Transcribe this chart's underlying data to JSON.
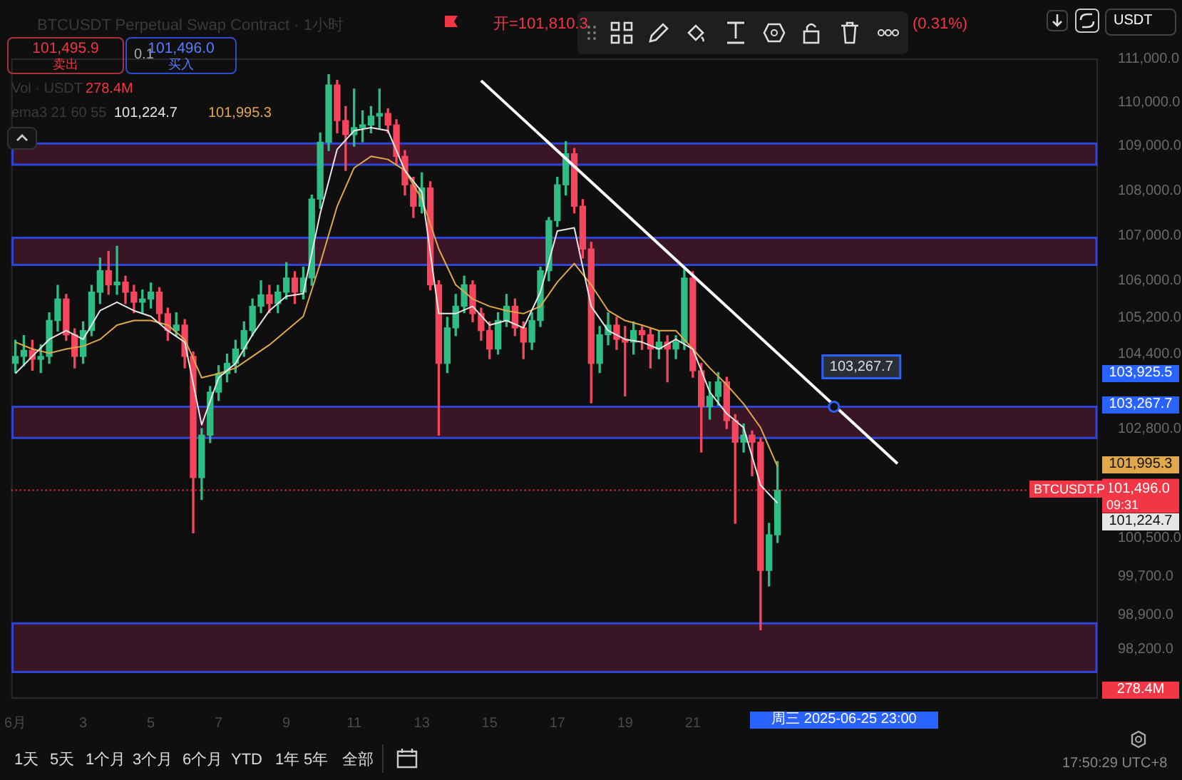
{
  "chart_data": {
    "type": "candlestick",
    "title": "BTCUSDT Perpetual Swap Contract · 1小时",
    "x": [
      "2025-06-01T00:00",
      "2025-06-01T06:00",
      "2025-06-01T12:00",
      "2025-06-01T18:00",
      "2025-06-02T00:00",
      "2025-06-02T06:00",
      "2025-06-02T12:00",
      "2025-06-02T18:00",
      "2025-06-03T00:00",
      "2025-06-03T06:00",
      "2025-06-03T12:00",
      "2025-06-03T18:00",
      "2025-06-04T00:00",
      "2025-06-04T06:00",
      "2025-06-04T12:00",
      "2025-06-04T18:00",
      "2025-06-05T00:00",
      "2025-06-05T06:00",
      "2025-06-05T12:00",
      "2025-06-05T18:00",
      "2025-06-06T00:00",
      "2025-06-06T06:00",
      "2025-06-06T12:00",
      "2025-06-06T18:00",
      "2025-06-07T00:00",
      "2025-06-07T06:00",
      "2025-06-07T12:00",
      "2025-06-07T18:00",
      "2025-06-08T00:00",
      "2025-06-08T06:00",
      "2025-06-08T12:00",
      "2025-06-08T18:00",
      "2025-06-09T00:00",
      "2025-06-09T06:00",
      "2025-06-09T12:00",
      "2025-06-09T18:00",
      "2025-06-10T00:00",
      "2025-06-10T06:00",
      "2025-06-10T12:00",
      "2025-06-10T18:00",
      "2025-06-11T00:00",
      "2025-06-11T06:00",
      "2025-06-11T12:00",
      "2025-06-11T18:00",
      "2025-06-12T00:00",
      "2025-06-12T06:00",
      "2025-06-12T12:00",
      "2025-06-12T18:00",
      "2025-06-13T00:00",
      "2025-06-13T06:00",
      "2025-06-13T12:00",
      "2025-06-13T18:00",
      "2025-06-14T00:00",
      "2025-06-14T06:00",
      "2025-06-14T12:00",
      "2025-06-14T18:00",
      "2025-06-15T00:00",
      "2025-06-15T06:00",
      "2025-06-15T12:00",
      "2025-06-15T18:00",
      "2025-06-16T00:00",
      "2025-06-16T06:00",
      "2025-06-16T12:00",
      "2025-06-16T18:00",
      "2025-06-17T00:00",
      "2025-06-17T06:00",
      "2025-06-17T12:00",
      "2025-06-17T18:00",
      "2025-06-18T00:00",
      "2025-06-18T06:00",
      "2025-06-18T12:00",
      "2025-06-18T18:00",
      "2025-06-19T00:00",
      "2025-06-19T06:00",
      "2025-06-19T12:00",
      "2025-06-19T18:00",
      "2025-06-20T00:00",
      "2025-06-20T06:00",
      "2025-06-20T12:00",
      "2025-06-20T18:00",
      "2025-06-21T00:00",
      "2025-06-21T06:00",
      "2025-06-21T12:00",
      "2025-06-21T18:00",
      "2025-06-22T00:00",
      "2025-06-22T06:00",
      "2025-06-22T12:00",
      "2025-06-22T18:00",
      "2025-06-23T00:00",
      "2025-06-23T06:00",
      "2025-06-23T12:00"
    ],
    "ohlc": [
      [
        104200,
        104700,
        104000,
        104350
      ],
      [
        104350,
        104800,
        104150,
        104480
      ],
      [
        104480,
        104700,
        104050,
        104290
      ],
      [
        104290,
        104600,
        104000,
        104350
      ],
      [
        104350,
        105300,
        104200,
        105130
      ],
      [
        105130,
        105900,
        104900,
        105600
      ],
      [
        105600,
        105700,
        104700,
        104820
      ],
      [
        104820,
        104950,
        104100,
        104350
      ],
      [
        104350,
        105100,
        104200,
        104910
      ],
      [
        104910,
        105900,
        104800,
        105750
      ],
      [
        105750,
        106500,
        105500,
        106220
      ],
      [
        106220,
        106650,
        105700,
        105910
      ],
      [
        105910,
        106760,
        105700,
        105970
      ],
      [
        105970,
        106100,
        105500,
        105750
      ],
      [
        105750,
        105900,
        105300,
        105530
      ],
      [
        105530,
        105800,
        105300,
        105600
      ],
      [
        105600,
        105950,
        105400,
        105750
      ],
      [
        105750,
        105850,
        105100,
        105280
      ],
      [
        105280,
        105400,
        104700,
        104910
      ],
      [
        104910,
        105300,
        104800,
        105030
      ],
      [
        105030,
        105150,
        104100,
        104350
      ],
      [
        104350,
        104450,
        100600,
        101760
      ],
      [
        101760,
        102800,
        101300,
        102660
      ],
      [
        102660,
        103700,
        102500,
        103580
      ],
      [
        103580,
        104150,
        103400,
        103980
      ],
      [
        103980,
        104400,
        103800,
        104200
      ],
      [
        104200,
        104700,
        104000,
        104510
      ],
      [
        104510,
        105100,
        104350,
        104910
      ],
      [
        104910,
        105600,
        104800,
        105440
      ],
      [
        105440,
        106000,
        105300,
        105690
      ],
      [
        105690,
        105900,
        105300,
        105500
      ],
      [
        105500,
        105900,
        105300,
        105750
      ],
      [
        105750,
        106400,
        105600,
        106060
      ],
      [
        106060,
        106200,
        105500,
        105750
      ],
      [
        105750,
        106300,
        105600,
        106060
      ],
      [
        106060,
        107900,
        105900,
        107810
      ],
      [
        107810,
        109300,
        107600,
        109090
      ],
      [
        109090,
        110630,
        108900,
        110390
      ],
      [
        110390,
        110500,
        109300,
        109580
      ],
      [
        109580,
        109900,
        108450,
        109260
      ],
      [
        109260,
        110300,
        109000,
        109420
      ],
      [
        109420,
        109800,
        109100,
        109480
      ],
      [
        109480,
        109900,
        109300,
        109680
      ],
      [
        109680,
        110300,
        109400,
        109740
      ],
      [
        109740,
        109850,
        109300,
        109480
      ],
      [
        109480,
        109600,
        108600,
        108770
      ],
      [
        108770,
        108900,
        107900,
        108130
      ],
      [
        108130,
        108300,
        107400,
        107650
      ],
      [
        107650,
        108400,
        107500,
        108060
      ],
      [
        108060,
        108200,
        105800,
        105910
      ],
      [
        105910,
        106000,
        102660,
        104200
      ],
      [
        104200,
        105200,
        104000,
        104970
      ],
      [
        104970,
        105700,
        104800,
        105440
      ],
      [
        105440,
        106100,
        105300,
        105910
      ],
      [
        105910,
        106000,
        105100,
        105280
      ],
      [
        105280,
        105400,
        104700,
        104910
      ],
      [
        104910,
        105100,
        104300,
        104510
      ],
      [
        104510,
        105300,
        104400,
        105130
      ],
      [
        105130,
        105700,
        105000,
        105440
      ],
      [
        105440,
        105600,
        104800,
        104970
      ],
      [
        104970,
        105100,
        104300,
        104660
      ],
      [
        104660,
        105300,
        104500,
        105130
      ],
      [
        105130,
        106300,
        105000,
        106220
      ],
      [
        106220,
        107400,
        106000,
        107330
      ],
      [
        107330,
        108300,
        107200,
        108130
      ],
      [
        108130,
        109100,
        107900,
        108830
      ],
      [
        108830,
        108950,
        107500,
        107650
      ],
      [
        107650,
        107800,
        106500,
        106700
      ],
      [
        106700,
        106850,
        103350,
        104200
      ],
      [
        104200,
        105000,
        104000,
        104820
      ],
      [
        104820,
        105300,
        104600,
        105030
      ],
      [
        105030,
        105200,
        104500,
        104720
      ],
      [
        104720,
        105000,
        103500,
        104660
      ],
      [
        104660,
        105100,
        104400,
        104910
      ],
      [
        104910,
        105000,
        104500,
        104820
      ],
      [
        104820,
        104950,
        104100,
        104510
      ],
      [
        104510,
        104900,
        104300,
        104660
      ],
      [
        104660,
        104800,
        103800,
        104510
      ],
      [
        104510,
        104800,
        104300,
        104660
      ],
      [
        104660,
        106300,
        104500,
        106060
      ],
      [
        106060,
        106200,
        103900,
        104040
      ],
      [
        104040,
        104200,
        102300,
        103270
      ],
      [
        103270,
        103800,
        103000,
        103490
      ],
      [
        103490,
        104000,
        103300,
        103800
      ],
      [
        103800,
        103900,
        102800,
        102970
      ],
      [
        102970,
        103100,
        100800,
        102510
      ],
      [
        102510,
        102900,
        102300,
        102660
      ],
      [
        102660,
        102750,
        101800,
        102510
      ],
      [
        102510,
        102600,
        98600,
        99820
      ],
      [
        99820,
        100800,
        99500,
        100560
      ],
      [
        100560,
        102100,
        100400,
        101496
      ]
    ],
    "series": [
      {
        "type": "line",
        "color": "#e6e6e6",
        "x": [
          "2025-06-01T00:00",
          "2025-06-01T12:00",
          "2025-06-02T00:00",
          "2025-06-02T12:00",
          "2025-06-03T00:00",
          "2025-06-03T12:00",
          "2025-06-04T00:00",
          "2025-06-04T12:00",
          "2025-06-05T00:00",
          "2025-06-05T12:00",
          "2025-06-06T00:00",
          "2025-06-06T12:00",
          "2025-06-07T00:00",
          "2025-06-07T12:00",
          "2025-06-08T00:00",
          "2025-06-08T12:00",
          "2025-06-09T00:00",
          "2025-06-09T12:00",
          "2025-06-10T00:00",
          "2025-06-10T12:00",
          "2025-06-11T00:00",
          "2025-06-11T12:00",
          "2025-06-12T00:00",
          "2025-06-12T12:00",
          "2025-06-13T00:00",
          "2025-06-13T12:00",
          "2025-06-14T00:00",
          "2025-06-14T12:00",
          "2025-06-15T00:00",
          "2025-06-15T12:00",
          "2025-06-16T00:00",
          "2025-06-16T12:00",
          "2025-06-17T00:00",
          "2025-06-17T12:00",
          "2025-06-18T00:00",
          "2025-06-18T12:00",
          "2025-06-19T00:00",
          "2025-06-19T12:00",
          "2025-06-20T00:00",
          "2025-06-20T12:00",
          "2025-06-21T00:00",
          "2025-06-21T12:00",
          "2025-06-22T00:00",
          "2025-06-22T12:00",
          "2025-06-23T00:00",
          "2025-06-23T12:00"
        ],
        "values": [
          103980,
          104350,
          104720,
          104910,
          104720,
          105345,
          105530,
          105345,
          105220,
          104910,
          104660,
          102880,
          103890,
          104200,
          104820,
          105345,
          105660,
          105720,
          107490,
          108930,
          109350,
          109420,
          109350,
          108450,
          107970,
          105280,
          105280,
          105440,
          105030,
          105130,
          104970,
          105750,
          107100,
          107170,
          105440,
          104910,
          104720,
          104660,
          104510,
          104720,
          104510,
          103580,
          103120,
          102820,
          101600,
          101224.7
        ]
      },
      {
        "type": "line",
        "color": "#e0a84a",
        "x": [
          "2025-06-01T00:00",
          "2025-06-01T12:00",
          "2025-06-02T00:00",
          "2025-06-02T12:00",
          "2025-06-03T00:00",
          "2025-06-03T12:00",
          "2025-06-04T00:00",
          "2025-06-04T12:00",
          "2025-06-05T00:00",
          "2025-06-05T12:00",
          "2025-06-06T00:00",
          "2025-06-06T12:00",
          "2025-06-07T00:00",
          "2025-06-07T12:00",
          "2025-06-08T00:00",
          "2025-06-08T12:00",
          "2025-06-09T00:00",
          "2025-06-09T12:00",
          "2025-06-10T00:00",
          "2025-06-10T12:00",
          "2025-06-11T00:00",
          "2025-06-11T12:00",
          "2025-06-12T00:00",
          "2025-06-12T12:00",
          "2025-06-13T00:00",
          "2025-06-13T12:00",
          "2025-06-14T00:00",
          "2025-06-14T12:00",
          "2025-06-15T00:00",
          "2025-06-15T12:00",
          "2025-06-16T00:00",
          "2025-06-16T12:00",
          "2025-06-17T00:00",
          "2025-06-17T12:00",
          "2025-06-18T00:00",
          "2025-06-18T12:00",
          "2025-06-19T00:00",
          "2025-06-19T12:00",
          "2025-06-20T00:00",
          "2025-06-20T12:00",
          "2025-06-21T00:00",
          "2025-06-21T12:00",
          "2025-06-22T00:00",
          "2025-06-22T12:00",
          "2025-06-23T00:00",
          "2025-06-23T12:00"
        ],
        "values": [
          104660,
          104510,
          104420,
          104510,
          104570,
          104720,
          105030,
          105130,
          105130,
          105030,
          104720,
          103890,
          103980,
          104100,
          104350,
          104600,
          104910,
          105220,
          106380,
          107650,
          108510,
          108770,
          108700,
          108450,
          107810,
          106700,
          105910,
          105600,
          105440,
          105345,
          105280,
          105440,
          105970,
          106380,
          105910,
          105345,
          105130,
          105030,
          104910,
          104910,
          104510,
          104100,
          103740,
          103330,
          102820,
          101995.3
        ]
      },
      {
        "type": "line",
        "color": "#ffffff",
        "x": [
          "2025-06-14T18:00",
          "2025-06-27T01:00"
        ],
        "values": [
          110490,
          102056
        ]
      }
    ],
    "xlim": [
      "2025-05-31T21:00",
      "2025-07-02T23:00"
    ],
    "xticks": [
      {
        "value": "2025-06-01",
        "label": "6月"
      },
      {
        "value": "2025-06-03",
        "label": "3"
      },
      {
        "value": "2025-06-05",
        "label": "5"
      },
      {
        "value": "2025-06-07",
        "label": "7"
      },
      {
        "value": "2025-06-09",
        "label": "9"
      },
      {
        "value": "2025-06-11",
        "label": "11"
      },
      {
        "value": "2025-06-13",
        "label": "13"
      },
      {
        "value": "2025-06-15",
        "label": "15"
      },
      {
        "value": "2025-06-17",
        "label": "17"
      },
      {
        "value": "2025-06-19",
        "label": "19"
      },
      {
        "value": "2025-06-21",
        "label": "21"
      }
    ],
    "ylim": [
      97200,
      111000
    ],
    "log": "y",
    "yticks": [
      {
        "value": 111000,
        "label": "111,000.0"
      },
      {
        "value": 110000,
        "label": "110,000.0"
      },
      {
        "value": 109000,
        "label": "109,000.0"
      },
      {
        "value": 108000,
        "label": "108,000.0"
      },
      {
        "value": 107000,
        "label": "107,000.0"
      },
      {
        "value": 106000,
        "label": "106,000.0"
      },
      {
        "value": 105200,
        "label": "105,200.0"
      },
      {
        "value": 104400,
        "label": "104,400.0"
      },
      {
        "value": 102800,
        "label": "102,800.0"
      },
      {
        "value": 100500,
        "label": "100,500.0"
      },
      {
        "value": 99700,
        "label": "99,700.0"
      },
      {
        "value": 98900,
        "label": "98,900.0"
      },
      {
        "value": 98200,
        "label": "98,200.0"
      }
    ],
    "bands": [
      {
        "axis": "y",
        "from": 108580,
        "to": 109060,
        "color": "#3a1526"
      },
      {
        "axis": "y",
        "from": 106350,
        "to": 106950,
        "color": "#3a1526"
      },
      {
        "axis": "y",
        "from": 102600,
        "to": 103267.7,
        "color": "#3a1526"
      },
      {
        "axis": "y",
        "from": 97740,
        "to": 98730,
        "color": "#3a1526"
      }
    ],
    "ref_lines": [
      {
        "axis": "y",
        "value": 101496,
        "label": "101,496.0",
        "color": "#f23645",
        "line_style": "dotted"
      }
    ],
    "annotations": [
      "开=101,810.3",
      "(0.31%)",
      "101,495.9",
      "卖出",
      "0.1",
      "101,496.0",
      "买入",
      "Vol · USDT",
      "278.4M",
      "ema3 21 60 55",
      "101,224.7",
      "101,995.3",
      "BTCUSDT.P",
      "09:31",
      "278.4M",
      "周三 2025-06-25 23:00",
      "1天",
      "5天",
      "1个月",
      "3个月",
      "6个月",
      "YTD",
      "1年",
      "5年",
      "全部",
      "17:50:29 UTC+8",
      "USDT",
      "103,925.5",
      "103,267.7",
      "101,995.3",
      "101,224.7",
      {
        "text": "103,267.7",
        "x": "2025-06-25T04:00",
        "y": 103267.7
      }
    ]
  }
}
